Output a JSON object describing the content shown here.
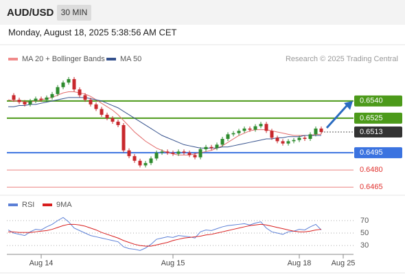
{
  "header": {
    "symbol": "AUD/USD",
    "interval": "30 MIN",
    "timestamp": "Monday, August 18, 2025 5:38:56 AM CET"
  },
  "chart_data": [
    {
      "type": "candlestick",
      "legend": [
        {
          "name": "MA 20 + Bollinger Bands",
          "color": "#f08a8a"
        },
        {
          "name": "MA 50",
          "color": "#34508c"
        }
      ],
      "credit": "Research © 2025 Trading Central",
      "ylim": [
        0.6458,
        0.6568
      ],
      "up_color": "#2e8b2e",
      "down_color": "#c8282d",
      "values": [
        0.6545,
        0.6541,
        0.6539,
        0.6537,
        0.654,
        0.6542,
        0.6541,
        0.6543,
        0.6546,
        0.6552,
        0.6556,
        0.6559,
        0.655,
        0.6545,
        0.6541,
        0.6537,
        0.6533,
        0.6528,
        0.6525,
        0.6522,
        0.6519,
        0.6497,
        0.6492,
        0.6488,
        0.6484,
        0.6486,
        0.649,
        0.6495,
        0.6496,
        0.6495,
        0.6494,
        0.6496,
        0.6495,
        0.6493,
        0.6491,
        0.6498,
        0.65,
        0.6499,
        0.6502,
        0.6507,
        0.6511,
        0.6512,
        0.6514,
        0.6516,
        0.6515,
        0.6518,
        0.652,
        0.6514,
        0.6508,
        0.6505,
        0.6503,
        0.6505,
        0.6506,
        0.6508,
        0.6507,
        0.6511,
        0.6516,
        0.6513,
        null,
        null,
        null,
        null
      ],
      "series": [
        {
          "name": "MA 20",
          "color": "#e36b6b",
          "values": [
            0.6541,
            0.654,
            0.654,
            0.6539,
            0.6539,
            0.654,
            0.6541,
            0.6542,
            0.6543,
            0.6545,
            0.6547,
            0.6548,
            0.6548,
            0.6547,
            0.6546,
            0.6544,
            0.6541,
            0.6538,
            0.6535,
            0.6532,
            0.6528,
            0.6523,
            0.6518,
            0.6513,
            0.6509,
            0.6505,
            0.6502,
            0.6499,
            0.6497,
            0.6495,
            0.6494,
            0.6493,
            0.6493,
            0.6493,
            0.6494,
            0.6495,
            0.6496,
            0.6497,
            0.6499,
            0.6501,
            0.6504,
            0.6507,
            0.651,
            0.6512,
            0.6514,
            0.6515,
            0.6515,
            0.6515,
            0.6514,
            0.6513,
            0.6512,
            0.6511,
            0.651,
            0.651,
            0.651,
            0.651,
            0.6511,
            0.6511,
            null,
            null,
            null,
            null
          ]
        },
        {
          "name": "MA 50",
          "color": "#34508c",
          "values": [
            0.6535,
            0.6535,
            0.6536,
            0.6536,
            0.6537,
            0.6537,
            0.6538,
            0.6539,
            0.654,
            0.6541,
            0.6542,
            0.6543,
            0.6543,
            0.6543,
            0.6543,
            0.6542,
            0.6541,
            0.654,
            0.6538,
            0.6536,
            0.6534,
            0.6531,
            0.6528,
            0.6525,
            0.6522,
            0.6519,
            0.6516,
            0.6513,
            0.651,
            0.6508,
            0.6506,
            0.6504,
            0.6502,
            0.6501,
            0.65,
            0.6499,
            0.6499,
            0.6499,
            0.6499,
            0.65,
            0.65,
            0.6501,
            0.6502,
            0.6503,
            0.6504,
            0.6505,
            0.6506,
            0.6507,
            0.6507,
            0.6508,
            0.6508,
            0.6509,
            0.6509,
            0.6509,
            0.651,
            0.651,
            0.651,
            0.651,
            null,
            null,
            null,
            null
          ]
        }
      ],
      "levels": [
        {
          "value": 0.654,
          "label": "0.6540",
          "color": "#4c9a1a",
          "style": "box"
        },
        {
          "value": 0.6525,
          "label": "0.6525",
          "color": "#4c9a1a",
          "style": "box"
        },
        {
          "value": 0.6513,
          "label": "0.6513",
          "color": "#333333",
          "style": "current"
        },
        {
          "value": 0.6495,
          "label": "0.6495",
          "color": "#3b73e0",
          "style": "box"
        },
        {
          "value": 0.648,
          "label": "0.6480",
          "color": "#e0312e",
          "style": "text"
        },
        {
          "value": 0.6465,
          "label": "0.6465",
          "color": "#e0312e",
          "style": "text"
        }
      ]
    },
    {
      "type": "line",
      "ylim": [
        18,
        82
      ],
      "yticks": [
        70,
        50,
        30
      ],
      "categories": [
        null,
        null,
        null,
        null,
        null,
        null,
        "Aug 14",
        null,
        null,
        null,
        null,
        null,
        null,
        null,
        null,
        null,
        null,
        null,
        null,
        null,
        null,
        null,
        null,
        null,
        null,
        null,
        null,
        null,
        null,
        null,
        "Aug 15",
        null,
        null,
        null,
        null,
        null,
        null,
        null,
        null,
        null,
        null,
        null,
        null,
        null,
        null,
        null,
        null,
        null,
        null,
        null,
        null,
        null,
        null,
        "Aug 18",
        null,
        null,
        null,
        null,
        null,
        null,
        null,
        "Aug 25"
      ],
      "series": [
        {
          "name": "RSI",
          "color": "#5b7fd6",
          "values": [
            55,
            50,
            48,
            46,
            52,
            56,
            55,
            60,
            64,
            70,
            75,
            68,
            58,
            54,
            50,
            46,
            44,
            42,
            40,
            38,
            36,
            28,
            25,
            24,
            22,
            26,
            32,
            40,
            42,
            44,
            43,
            46,
            45,
            44,
            42,
            52,
            55,
            54,
            57,
            60,
            62,
            63,
            64,
            65,
            63,
            66,
            68,
            58,
            52,
            50,
            48,
            52,
            53,
            56,
            55,
            60,
            64,
            55,
            null,
            null,
            null,
            null
          ]
        },
        {
          "name": "9MA",
          "color": "#d81e1e",
          "values": [
            52,
            52,
            51,
            51,
            51,
            52,
            53,
            54,
            56,
            59,
            62,
            64,
            64,
            63,
            61,
            58,
            55,
            51,
            48,
            45,
            42,
            38,
            35,
            32,
            30,
            29,
            29,
            31,
            33,
            35,
            38,
            40,
            42,
            43,
            44,
            45,
            47,
            48,
            50,
            52,
            54,
            56,
            58,
            60,
            62,
            63,
            64,
            63,
            61,
            59,
            57,
            55,
            53,
            52,
            52,
            53,
            55,
            56,
            null,
            null,
            null,
            null
          ]
        }
      ]
    }
  ]
}
